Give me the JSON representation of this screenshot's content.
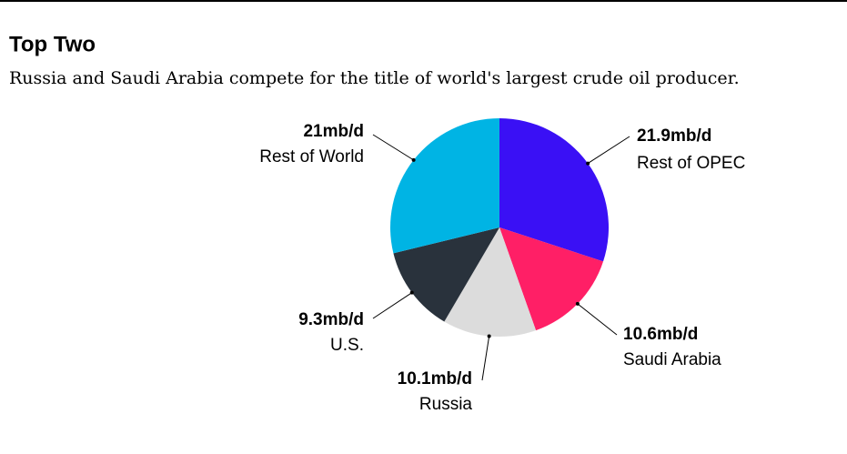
{
  "chart_data": {
    "type": "pie",
    "title": "Top Two",
    "subtitle": "Russia and Saudi Arabia compete for the title of world's largest crude oil producer.",
    "categories": [
      "Rest of OPEC",
      "Saudi Arabia",
      "Russia",
      "U.S.",
      "Rest of World"
    ],
    "values": [
      21.9,
      10.6,
      10.1,
      9.3,
      21
    ],
    "value_labels": [
      "21.9mb/d",
      "10.6mb/d",
      "10.1mb/d",
      "9.3mb/d",
      "21mb/d"
    ],
    "colors": [
      "#3a10f5",
      "#ff1f66",
      "#dcdcdc",
      "#29323c",
      "#00b4e4"
    ]
  }
}
